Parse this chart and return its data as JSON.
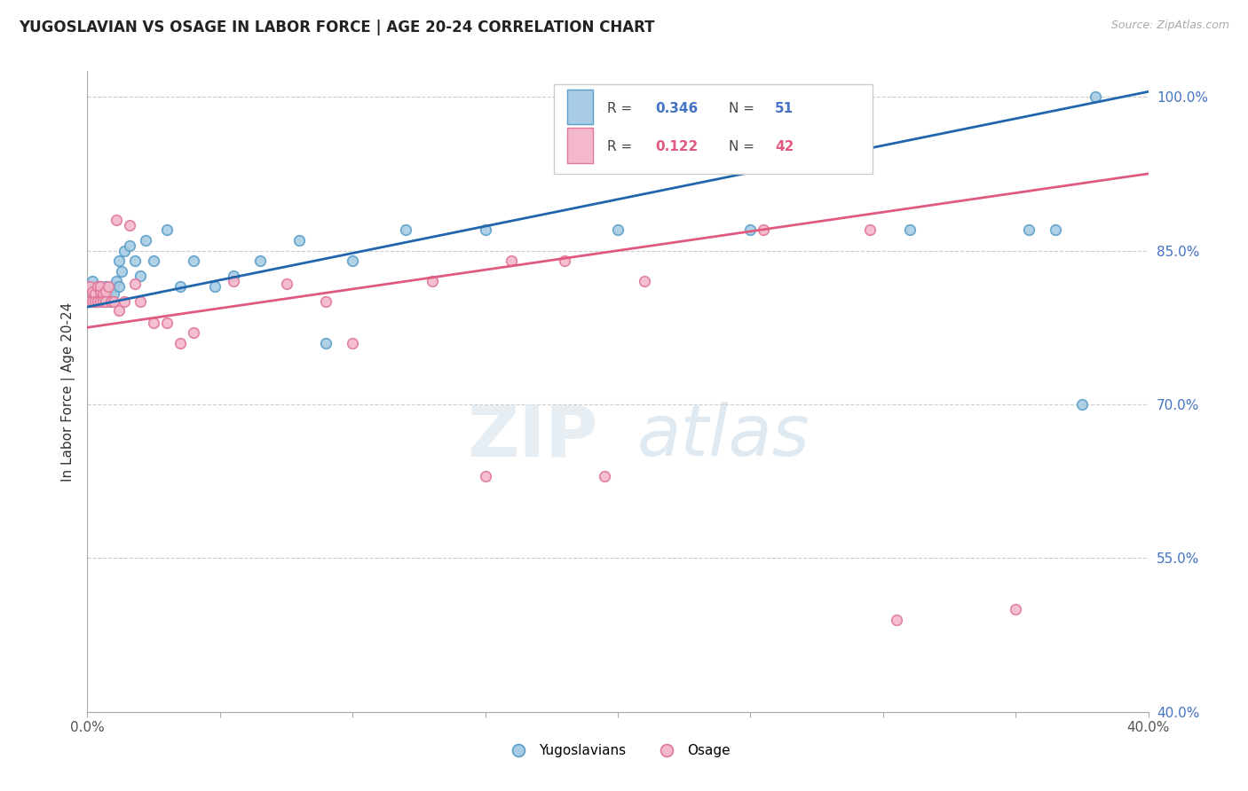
{
  "title": "YUGOSLAVIAN VS OSAGE IN LABOR FORCE | AGE 20-24 CORRELATION CHART",
  "source": "Source: ZipAtlas.com",
  "ylabel": "In Labor Force | Age 20-24",
  "xlim": [
    0.0,
    0.4
  ],
  "ylim": [
    0.4,
    1.025
  ],
  "xtick_positions": [
    0.0,
    0.05,
    0.1,
    0.15,
    0.2,
    0.25,
    0.3,
    0.35,
    0.4
  ],
  "xtick_labels": [
    "0.0%",
    "",
    "",
    "",
    "",
    "",
    "",
    "",
    "40.0%"
  ],
  "ytick_positions": [
    0.4,
    0.55,
    0.7,
    0.85,
    1.0
  ],
  "ytick_labels": [
    "40.0%",
    "55.0%",
    "70.0%",
    "85.0%",
    "100.0%"
  ],
  "blue_color": "#a8cce4",
  "blue_edge": "#5a9ec9",
  "pink_color": "#f4b8cc",
  "pink_edge": "#e07898",
  "blue_line_color": "#2166ac",
  "pink_line_color": "#e05a80",
  "legend_R_blue": "0.346",
  "legend_N_blue": "51",
  "legend_R_pink": "0.122",
  "legend_N_pink": "42",
  "blue_line_x0": 0.0,
  "blue_line_x1": 0.4,
  "blue_line_y0": 0.795,
  "blue_line_y1": 1.005,
  "pink_line_x0": 0.0,
  "pink_line_x1": 0.4,
  "pink_line_y0": 0.775,
  "pink_line_y1": 0.925,
  "blue_x": [
    0.001,
    0.002,
    0.002,
    0.003,
    0.003,
    0.003,
    0.004,
    0.004,
    0.004,
    0.005,
    0.005,
    0.005,
    0.006,
    0.006,
    0.007,
    0.007,
    0.007,
    0.008,
    0.008,
    0.009,
    0.009,
    0.01,
    0.01,
    0.011,
    0.012,
    0.012,
    0.013,
    0.014,
    0.016,
    0.018,
    0.02,
    0.022,
    0.025,
    0.03,
    0.035,
    0.04,
    0.048,
    0.055,
    0.065,
    0.08,
    0.09,
    0.1,
    0.12,
    0.15,
    0.2,
    0.25,
    0.31,
    0.355,
    0.365,
    0.375,
    0.38
  ],
  "blue_y": [
    0.8,
    0.82,
    0.81,
    0.8,
    0.81,
    0.8,
    0.815,
    0.8,
    0.81,
    0.805,
    0.8,
    0.815,
    0.81,
    0.8,
    0.815,
    0.81,
    0.8,
    0.812,
    0.805,
    0.81,
    0.8,
    0.815,
    0.808,
    0.82,
    0.815,
    0.84,
    0.83,
    0.85,
    0.855,
    0.84,
    0.825,
    0.86,
    0.84,
    0.87,
    0.815,
    0.84,
    0.815,
    0.825,
    0.84,
    0.86,
    0.76,
    0.84,
    0.87,
    0.87,
    0.87,
    0.87,
    0.87,
    0.87,
    0.87,
    0.7,
    1.0
  ],
  "pink_x": [
    0.001,
    0.001,
    0.002,
    0.002,
    0.003,
    0.003,
    0.004,
    0.004,
    0.005,
    0.005,
    0.005,
    0.006,
    0.006,
    0.007,
    0.007,
    0.008,
    0.009,
    0.01,
    0.011,
    0.012,
    0.014,
    0.016,
    0.018,
    0.02,
    0.025,
    0.03,
    0.035,
    0.04,
    0.055,
    0.075,
    0.09,
    0.1,
    0.13,
    0.15,
    0.16,
    0.18,
    0.195,
    0.21,
    0.255,
    0.295,
    0.305,
    0.35
  ],
  "pink_y": [
    0.8,
    0.815,
    0.81,
    0.8,
    0.808,
    0.8,
    0.815,
    0.8,
    0.81,
    0.8,
    0.815,
    0.808,
    0.8,
    0.81,
    0.8,
    0.815,
    0.8,
    0.8,
    0.88,
    0.792,
    0.8,
    0.875,
    0.818,
    0.8,
    0.78,
    0.78,
    0.76,
    0.77,
    0.82,
    0.818,
    0.8,
    0.76,
    0.82,
    0.63,
    0.84,
    0.84,
    0.63,
    0.82,
    0.87,
    0.87,
    0.49,
    0.5
  ]
}
